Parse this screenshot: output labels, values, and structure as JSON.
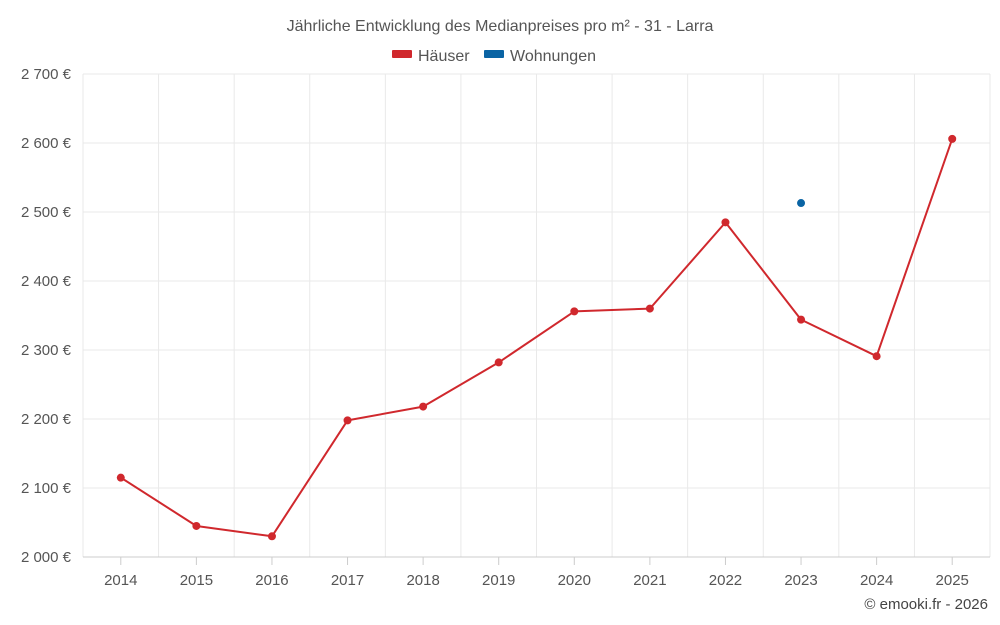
{
  "chart_data": {
    "type": "line",
    "title": "Jährliche Entwicklung des Medianpreises pro m² - 31 - Larra",
    "x": [
      "2014",
      "2015",
      "2016",
      "2017",
      "2018",
      "2019",
      "2020",
      "2021",
      "2022",
      "2023",
      "2024",
      "2025"
    ],
    "series": [
      {
        "name": "Häuser",
        "color": "#d0282d",
        "values": [
          2115,
          2045,
          2030,
          2198,
          2218,
          2282,
          2356,
          2360,
          2485,
          2344,
          2291,
          2606
        ]
      },
      {
        "name": "Wohnungen",
        "color": "#0a64a4",
        "values": [
          null,
          null,
          null,
          null,
          null,
          null,
          null,
          null,
          null,
          2513,
          null,
          null
        ]
      }
    ],
    "ylim": [
      2000,
      2700
    ],
    "yticks": [
      "2 000 €",
      "2 100 €",
      "2 200 €",
      "2 300 €",
      "2 400 €",
      "2 500 €",
      "2 600 €",
      "2 700 €"
    ],
    "ytick_values": [
      2000,
      2100,
      2200,
      2300,
      2400,
      2500,
      2600,
      2700
    ],
    "grid": true,
    "legend_position": "top-center"
  },
  "footer": {
    "copyright": "© emooki.fr - 2026"
  }
}
